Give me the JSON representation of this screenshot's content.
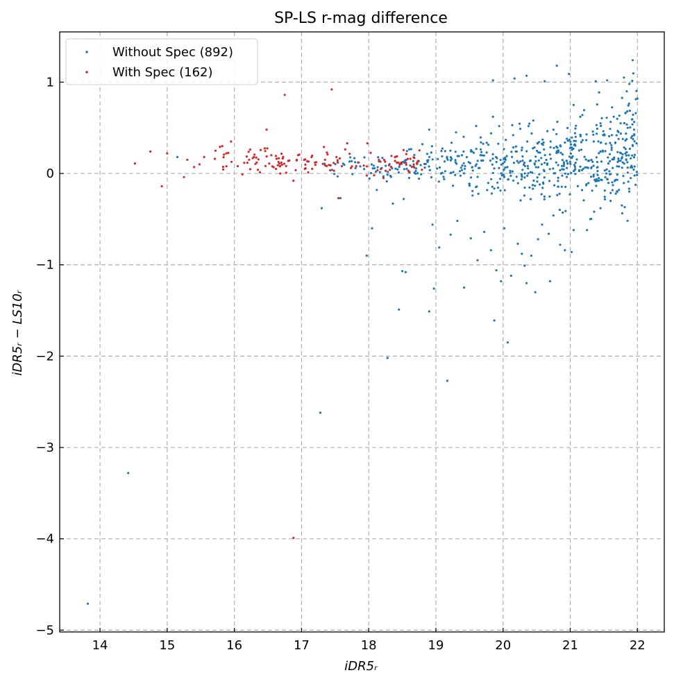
{
  "chart_data": {
    "type": "scatter",
    "title": "SP-LS r-mag difference",
    "xlabel": "iDR5_r",
    "xlabel_display": "iDR5ᵣ",
    "ylabel": "iDR5_r − LS10_r",
    "ylabel_display": "iDR5ᵣ − LS10ᵣ",
    "xlim": [
      13.4,
      22.4
    ],
    "ylim": [
      -5.02,
      1.55
    ],
    "xticks": [
      14,
      15,
      16,
      17,
      18,
      19,
      20,
      21,
      22
    ],
    "yticks": [
      1,
      0,
      -1,
      -2,
      -3,
      -4,
      -5
    ],
    "xtick_labels": [
      "14",
      "15",
      "16",
      "17",
      "18",
      "19",
      "20",
      "21",
      "22"
    ],
    "ytick_labels": [
      "1",
      "0",
      "−1",
      "−2",
      "−3",
      "−4",
      "−5"
    ],
    "grid": true,
    "legend_position": "top-left",
    "series": [
      {
        "name": "Without Spec (892)",
        "color": "#1f77b4",
        "points": [
          [
            13.82,
            -4.71
          ],
          [
            14.42,
            -3.28
          ],
          [
            15.15,
            0.18
          ],
          [
            17.28,
            -2.62
          ],
          [
            18.28,
            -2.02
          ],
          [
            18.45,
            -1.49
          ],
          [
            18.5,
            -1.07
          ],
          [
            18.55,
            -1.08
          ],
          [
            17.97,
            -0.9
          ],
          [
            18.05,
            -0.6
          ],
          [
            18.9,
            -1.51
          ],
          [
            18.97,
            -1.26
          ],
          [
            19.17,
            -2.27
          ],
          [
            19.42,
            -1.25
          ],
          [
            19.87,
            -1.61
          ],
          [
            19.9,
            -1.06
          ],
          [
            19.97,
            -1.18
          ],
          [
            20.07,
            -1.85
          ],
          [
            20.12,
            -1.12
          ],
          [
            20.35,
            -1.2
          ],
          [
            20.48,
            -1.3
          ],
          [
            20.7,
            -1.18
          ],
          [
            19.85,
            1.02
          ],
          [
            20.17,
            1.04
          ],
          [
            20.35,
            1.07
          ],
          [
            20.62,
            1.01
          ],
          [
            20.8,
            1.18
          ],
          [
            20.98,
            1.09
          ],
          [
            21.38,
            1.01
          ],
          [
            21.55,
            1.02
          ],
          [
            21.8,
            1.05
          ],
          [
            21.93,
            1.24
          ],
          [
            21.88,
            0.98
          ],
          [
            17.3,
            -0.38
          ],
          [
            17.58,
            -0.27
          ],
          [
            18.12,
            -0.18
          ],
          [
            18.36,
            -0.33
          ],
          [
            18.52,
            -0.28
          ],
          [
            18.95,
            -0.56
          ],
          [
            19.05,
            -0.81
          ],
          [
            19.22,
            -0.67
          ],
          [
            19.32,
            -0.52
          ],
          [
            19.52,
            -0.71
          ],
          [
            19.62,
            -0.95
          ],
          [
            19.72,
            -0.64
          ],
          [
            19.82,
            -0.84
          ],
          [
            20.02,
            -0.6
          ],
          [
            20.22,
            -0.77
          ],
          [
            20.28,
            -0.88
          ],
          [
            20.32,
            -1.01
          ],
          [
            20.42,
            -0.9
          ],
          [
            20.52,
            -0.72
          ],
          [
            20.58,
            -0.56
          ],
          [
            20.68,
            -0.66
          ],
          [
            20.75,
            -0.46
          ],
          [
            20.85,
            -0.78
          ],
          [
            20.92,
            -0.84
          ],
          [
            21.02,
            -0.86
          ],
          [
            21.05,
            -0.62
          ],
          [
            21.25,
            -0.62
          ],
          [
            21.3,
            -0.5
          ],
          [
            21.45,
            -0.38
          ],
          [
            21.6,
            -0.3
          ],
          [
            21.7,
            -0.2
          ],
          [
            21.9,
            -0.05
          ],
          [
            21.62,
            0.42
          ],
          [
            21.75,
            0.55
          ],
          [
            21.85,
            0.68
          ],
          [
            21.95,
            0.48
          ],
          [
            22.0,
            0.82
          ],
          [
            21.45,
            0.55
          ],
          [
            21.35,
            0.35
          ],
          [
            21.15,
            0.62
          ],
          [
            21.05,
            0.75
          ],
          [
            20.95,
            0.38
          ],
          [
            20.75,
            0.48
          ],
          [
            20.45,
            0.58
          ],
          [
            20.15,
            0.42
          ],
          [
            19.85,
            0.62
          ],
          [
            19.6,
            0.52
          ],
          [
            19.3,
            0.45
          ],
          [
            18.9,
            0.48
          ],
          [
            18.8,
            0.32
          ]
        ]
      },
      {
        "name": "With Spec (162)",
        "color": "#d62728",
        "points": [
          [
            14.52,
            0.11
          ],
          [
            14.75,
            0.24
          ],
          [
            14.92,
            -0.14
          ],
          [
            15.0,
            0.22
          ],
          [
            15.25,
            -0.04
          ],
          [
            15.3,
            0.15
          ],
          [
            15.4,
            0.07
          ],
          [
            15.48,
            0.1
          ],
          [
            15.55,
            0.18
          ],
          [
            15.72,
            0.25
          ],
          [
            15.82,
            0.3
          ],
          [
            15.88,
            0.22
          ],
          [
            15.95,
            0.35
          ],
          [
            16.05,
            0.08
          ],
          [
            16.12,
            -0.01
          ],
          [
            16.22,
            0.15
          ],
          [
            16.35,
            0.04
          ],
          [
            16.48,
            0.48
          ],
          [
            16.55,
            0.2
          ],
          [
            16.7,
            0.12
          ],
          [
            16.75,
            0.86
          ],
          [
            16.88,
            -0.08
          ],
          [
            16.95,
            0.2
          ],
          [
            17.05,
            0.05
          ],
          [
            17.2,
            0.12
          ],
          [
            17.35,
            0.15
          ],
          [
            17.45,
            0.92
          ],
          [
            17.52,
            0.18
          ],
          [
            17.55,
            -0.27
          ],
          [
            17.68,
            0.33
          ],
          [
            17.85,
            0.12
          ],
          [
            17.98,
            0.33
          ],
          [
            18.08,
            -0.02
          ],
          [
            18.22,
            -0.05
          ],
          [
            18.42,
            0.12
          ],
          [
            18.62,
            0.16
          ],
          [
            16.88,
            -3.99
          ],
          [
            17.6,
            0.08
          ],
          [
            17.15,
            0.18
          ],
          [
            16.62,
            0.05
          ]
        ]
      }
    ]
  }
}
